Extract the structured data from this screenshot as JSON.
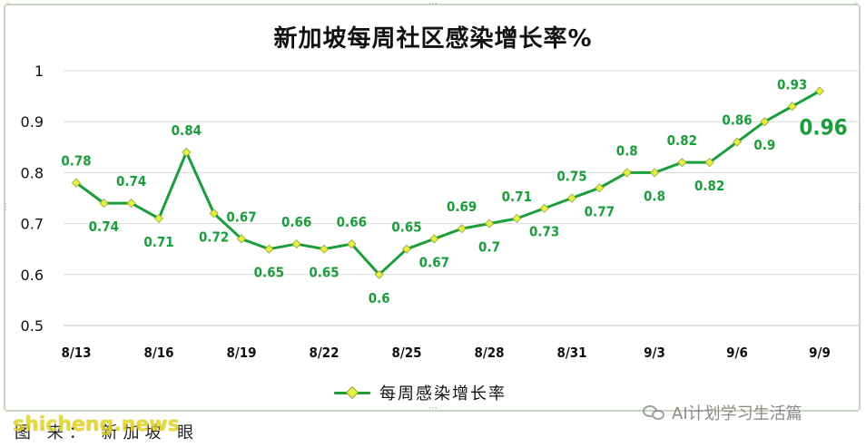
{
  "chart_data": {
    "type": "line",
    "title": "新加坡每周社区感染增长率%",
    "xlabel": "",
    "ylabel": "",
    "ylim": [
      0.5,
      1.0
    ],
    "yticks": [
      "0.5",
      "0.6",
      "0.7",
      "0.8",
      "0.9",
      "1"
    ],
    "grid": "horizontal",
    "legend_position": "bottom",
    "x": [
      "8/13",
      "8/14",
      "8/15",
      "8/16",
      "8/17",
      "8/18",
      "8/19",
      "8/20",
      "8/21",
      "8/22",
      "8/23",
      "8/24",
      "8/25",
      "8/26",
      "8/27",
      "8/28",
      "8/29",
      "8/30",
      "8/31",
      "9/1",
      "9/2",
      "9/3",
      "9/4",
      "9/5",
      "9/6",
      "9/7",
      "9/8",
      "9/9"
    ],
    "xtick_labels": [
      "8/13",
      "8/16",
      "8/19",
      "8/22",
      "8/25",
      "8/28",
      "8/31",
      "9/3",
      "9/6",
      "9/9"
    ],
    "series": [
      {
        "name": "每周感染增长率",
        "color": "#1a9e3a",
        "marker_color": "#e6ef3a",
        "values": [
          0.78,
          0.74,
          0.74,
          0.71,
          0.84,
          0.72,
          0.67,
          0.65,
          0.66,
          0.65,
          0.66,
          0.6,
          0.65,
          0.67,
          0.69,
          0.7,
          0.71,
          0.73,
          0.75,
          0.77,
          0.8,
          0.8,
          0.82,
          0.82,
          0.86,
          0.9,
          0.93,
          0.96
        ],
        "data_labels": [
          "0.78",
          "0.74",
          "0.74",
          "0.71",
          "0.84",
          "0.72",
          "0.67",
          "0.65",
          "0.66",
          "0.65",
          "0.66",
          "0.6",
          "0.65",
          "0.67",
          "0.69",
          "0.7",
          "0.71",
          "0.73",
          "0.75",
          "0.77",
          "0.8",
          "0.8",
          "0.82",
          "0.82",
          "0.86",
          "0.9",
          "0.93",
          "0.96"
        ],
        "label_positions": [
          "above",
          "below",
          "above",
          "below",
          "above",
          "below",
          "above",
          "below",
          "above",
          "below",
          "above",
          "below",
          "above",
          "below",
          "above",
          "below",
          "above",
          "below",
          "above",
          "below",
          "above",
          "below",
          "above",
          "below",
          "above",
          "below",
          "above",
          "right"
        ]
      }
    ]
  },
  "footer": {
    "source_text": "图 来：  新加坡 眼",
    "site_watermark": "shicheng.news",
    "wechat_watermark": "AI计划学习生活篇"
  },
  "colors": {
    "line": "#1a9e3a",
    "marker_fill": "#e6ef3a",
    "label_text": "#1a9e3a",
    "grid": "#d9d9d9",
    "frame": "#c8d7c2"
  }
}
